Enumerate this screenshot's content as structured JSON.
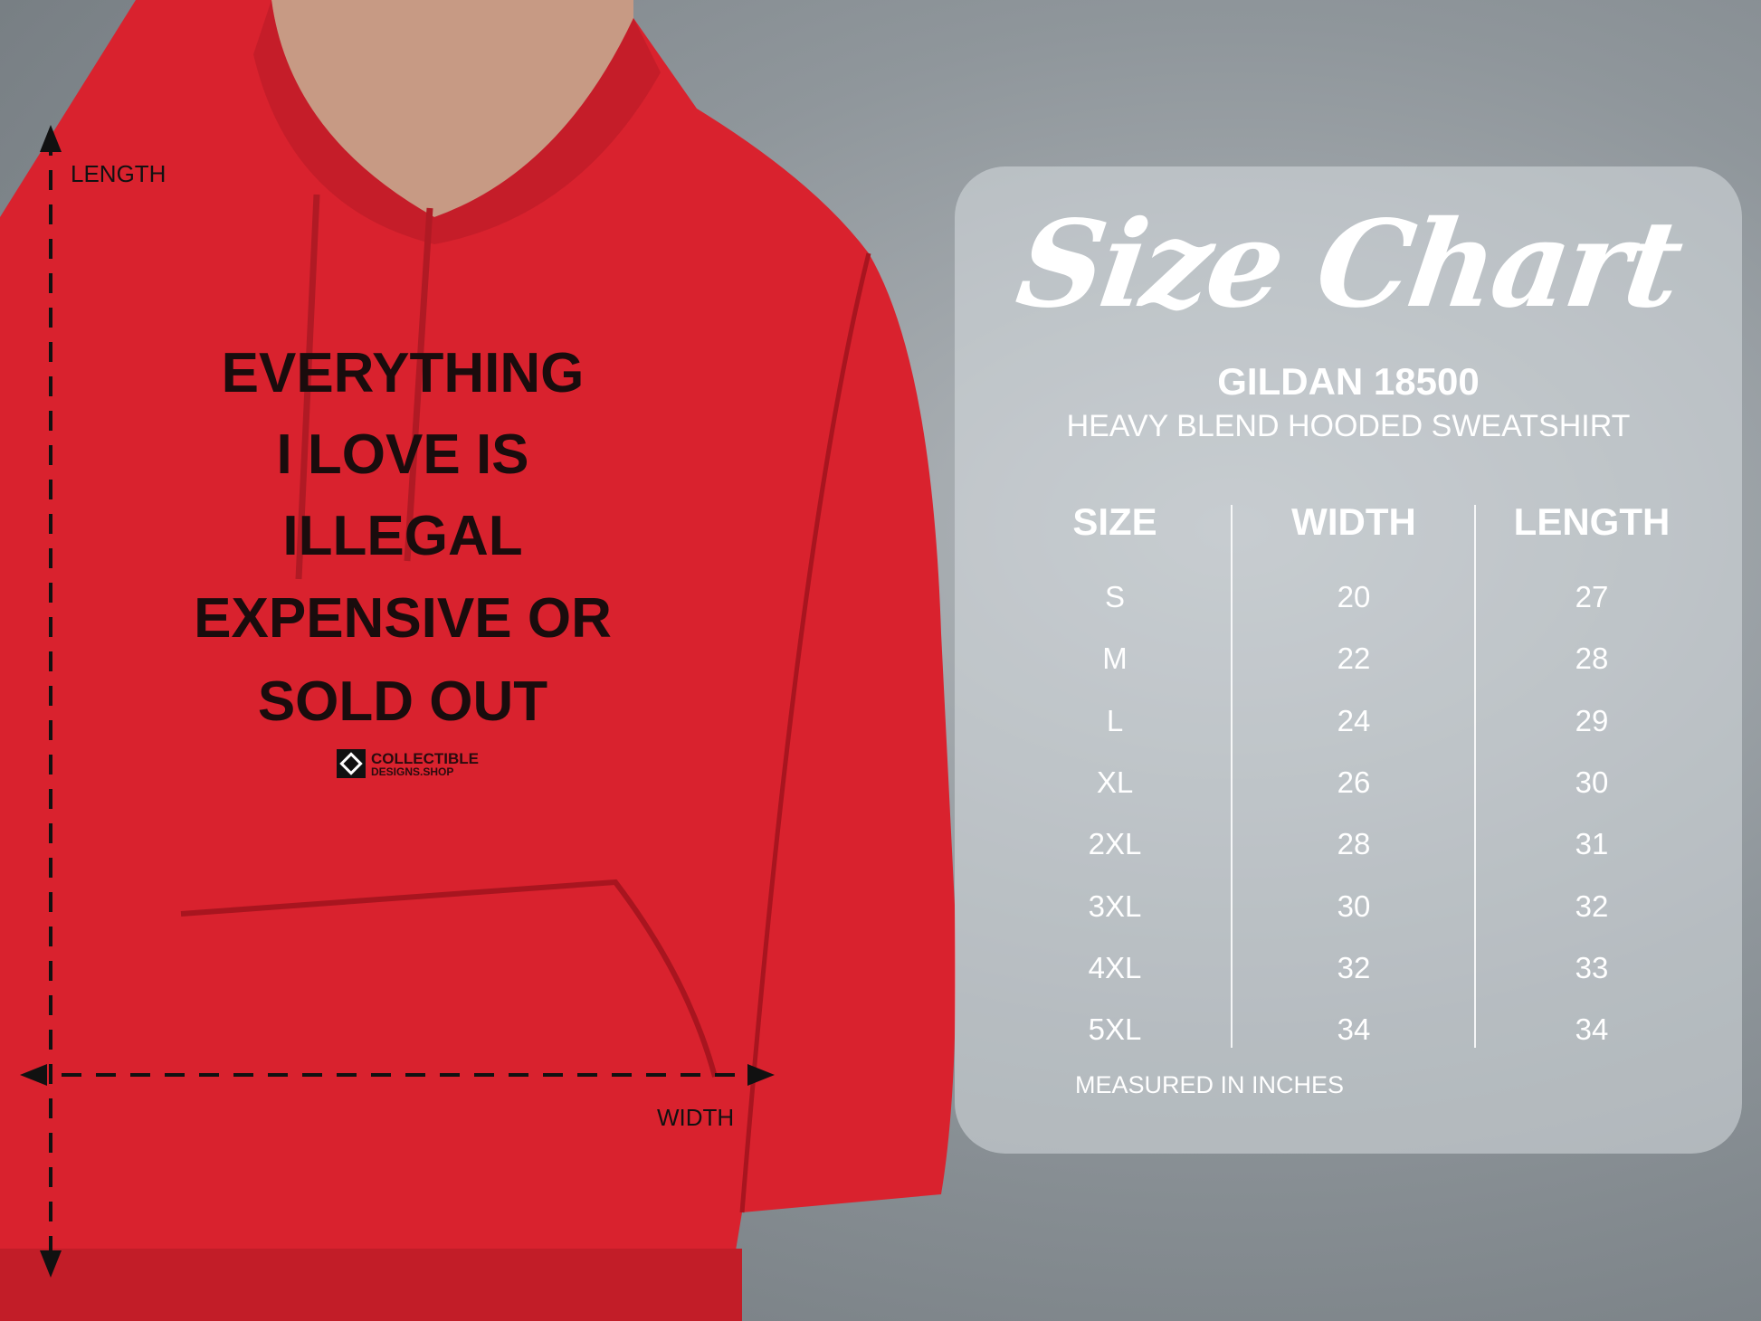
{
  "shirt": {
    "print_lines": [
      "EVERYTHING",
      "I LOVE IS",
      "ILLEGAL",
      "EXPENSIVE OR",
      "SOLD OUT"
    ],
    "logo_line1": "COLLECTIBLE",
    "logo_line2": "DESIGNS.SHOP",
    "color": "#d9222e"
  },
  "measure": {
    "length_label": "LENGTH",
    "width_label": "WIDTH"
  },
  "chart": {
    "title": "Size Chart",
    "model": "GILDAN 18500",
    "subtitle": "HEAVY BLEND HOODED SWEATSHIRT",
    "headers": [
      "SIZE",
      "WIDTH",
      "LENGTH"
    ],
    "rows": [
      [
        "S",
        "20",
        "27"
      ],
      [
        "M",
        "22",
        "28"
      ],
      [
        "L",
        "24",
        "29"
      ],
      [
        "XL",
        "26",
        "30"
      ],
      [
        "2XL",
        "28",
        "31"
      ],
      [
        "3XL",
        "30",
        "32"
      ],
      [
        "4XL",
        "32",
        "33"
      ],
      [
        "5XL",
        "34",
        "34"
      ]
    ],
    "footer": "MEASURED IN INCHES"
  }
}
